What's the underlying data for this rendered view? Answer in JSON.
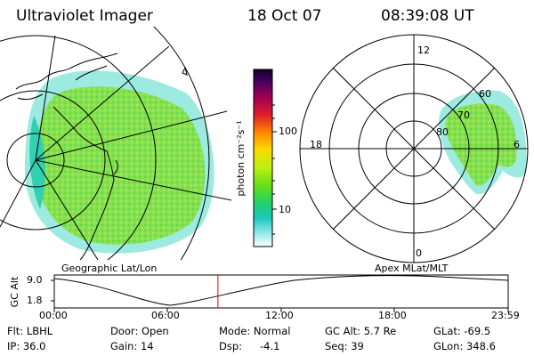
{
  "header": {
    "instrument": "Ultraviolet Imager",
    "date": "18 Oct 07",
    "time": "08:39:08 UT"
  },
  "geo_map": {
    "caption": "Geographic Lat/Lon"
  },
  "polar_map": {
    "caption": "Apex MLat/MLT",
    "mlt_labels": [
      "12",
      "18",
      "6",
      "0"
    ],
    "lat_labels": [
      "60",
      "70",
      "80"
    ]
  },
  "colorbar": {
    "unit_label": "photon cm⁻²s⁻¹",
    "tick_labels": [
      "100",
      "10"
    ],
    "colors": [
      "#1a0030",
      "#5a0060",
      "#a00060",
      "#d0103a",
      "#ff3010",
      "#ff8a00",
      "#ffd400",
      "#c8f000",
      "#66e010",
      "#22d060",
      "#18c8b0",
      "#60e0e0",
      "#b0f0f0",
      "#ffffff"
    ]
  },
  "timeline": {
    "y_label": "GC Alt",
    "y_ticks": [
      "9.0",
      "1.8"
    ],
    "x_ticks": [
      "00:00",
      "06:00",
      "12:00",
      "18:00",
      "23:59"
    ],
    "current_time_fraction": 0.3605,
    "marker_color": "#e00000"
  },
  "info": {
    "filter": "Flt: LBHL",
    "door": "Door: Open",
    "mode": "Mode: Normal",
    "gc_alt": "GC Alt: 5.7 Re",
    "glat": "GLat: -69.5",
    "ip": "IP: 36.0",
    "gain": "Gain: 14",
    "dsp_label": "Dsp:",
    "dsp_value": "-4.1",
    "seq": "Seq: 39",
    "glon": "GLon: 348.6"
  }
}
